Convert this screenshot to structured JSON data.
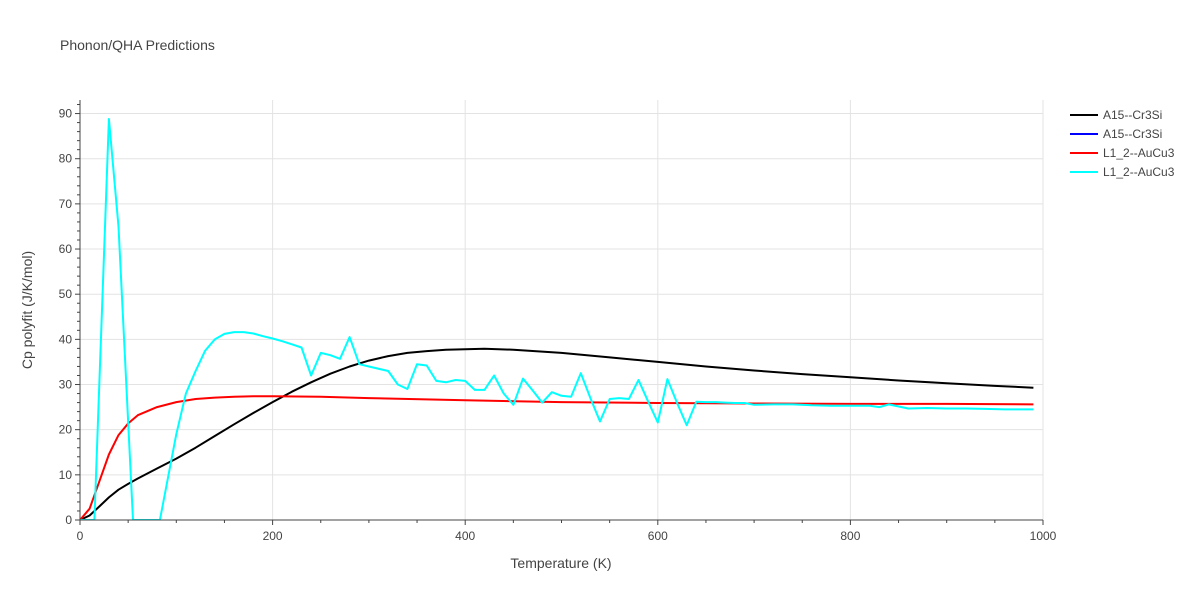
{
  "chart_data": {
    "type": "line",
    "title": "Phonon/QHA Predictions",
    "xlabel": "Temperature (K)",
    "ylabel": "Cp polyfit (J/K/mol)",
    "xlim": [
      0,
      1000
    ],
    "ylim": [
      0,
      93
    ],
    "xticks": [
      0,
      200,
      400,
      600,
      800,
      1000
    ],
    "yticks": [
      0,
      10,
      20,
      30,
      40,
      50,
      60,
      70,
      80,
      90
    ],
    "grid": true,
    "legend_position": "top-right",
    "series": [
      {
        "name": "A15--Cr3Si",
        "color": "#000000",
        "x": [
          0,
          10,
          20,
          30,
          40,
          50,
          60,
          80,
          100,
          120,
          140,
          160,
          180,
          200,
          220,
          240,
          260,
          280,
          300,
          320,
          340,
          360,
          380,
          400,
          420,
          450,
          500,
          550,
          600,
          650,
          700,
          750,
          800,
          850,
          900,
          950,
          990
        ],
        "y": [
          0,
          1.0,
          3.0,
          5.0,
          6.7,
          8.0,
          9.2,
          11.4,
          13.6,
          16.0,
          18.6,
          21.2,
          23.7,
          26.1,
          28.4,
          30.5,
          32.4,
          34.0,
          35.3,
          36.3,
          37.0,
          37.4,
          37.7,
          37.8,
          37.9,
          37.7,
          37.0,
          36.0,
          35.0,
          34.0,
          33.1,
          32.3,
          31.6,
          30.9,
          30.3,
          29.7,
          29.3
        ]
      },
      {
        "name": "A15--Cr3Si",
        "color": "#0000ff",
        "x": [],
        "y": []
      },
      {
        "name": "L1_2--AuCu3",
        "color": "#ff0000",
        "x": [
          0,
          10,
          20,
          30,
          40,
          50,
          60,
          80,
          100,
          120,
          140,
          160,
          180,
          200,
          250,
          300,
          400,
          500,
          600,
          700,
          800,
          900,
          990
        ],
        "y": [
          0,
          2.5,
          8.5,
          14.5,
          18.8,
          21.4,
          23.2,
          25.0,
          26.1,
          26.8,
          27.1,
          27.3,
          27.4,
          27.4,
          27.3,
          27.0,
          26.5,
          26.1,
          25.9,
          25.8,
          25.7,
          25.7,
          25.6
        ]
      },
      {
        "name": "L1_2--AuCu3",
        "color": "#00ffff",
        "x": [
          0,
          10,
          15,
          30,
          40,
          55,
          58,
          83,
          100,
          110,
          120,
          130,
          140,
          150,
          160,
          170,
          180,
          190,
          200,
          210,
          220,
          230,
          240,
          250,
          260,
          270,
          280,
          290,
          300,
          320,
          330,
          340,
          350,
          360,
          370,
          380,
          390,
          400,
          410,
          420,
          430,
          440,
          450,
          460,
          470,
          480,
          490,
          500,
          510,
          520,
          530,
          540,
          550,
          560,
          570,
          580,
          590,
          600,
          610,
          620,
          630,
          640,
          650,
          660,
          670,
          680,
          690,
          700,
          720,
          740,
          760,
          780,
          800,
          820,
          830,
          840,
          860,
          880,
          900,
          920,
          940,
          960,
          990
        ],
        "y": [
          0,
          0,
          0,
          88.8,
          65,
          0,
          0,
          0,
          19,
          28,
          33,
          37.5,
          40,
          41.2,
          41.6,
          41.6,
          41.3,
          40.7,
          40.2,
          39.6,
          38.9,
          38.2,
          32,
          37,
          36.5,
          35.7,
          40.5,
          34.5,
          34,
          33,
          30,
          29,
          34.5,
          34.2,
          30.8,
          30.5,
          31,
          30.8,
          28.8,
          28.8,
          32,
          28,
          25.5,
          31.3,
          28.7,
          26,
          28.3,
          27.5,
          27.3,
          32.5,
          27,
          21.8,
          26.8,
          27,
          26.8,
          31,
          26.2,
          21.6,
          31.2,
          25.9,
          21,
          26.2,
          26.1,
          26.1,
          26.0,
          25.9,
          25.9,
          25.5,
          25.6,
          25.6,
          25.4,
          25.3,
          25.3,
          25.3,
          25.0,
          25.6,
          24.7,
          24.8,
          24.7,
          24.7,
          24.6,
          24.5,
          24.5
        ]
      }
    ]
  }
}
